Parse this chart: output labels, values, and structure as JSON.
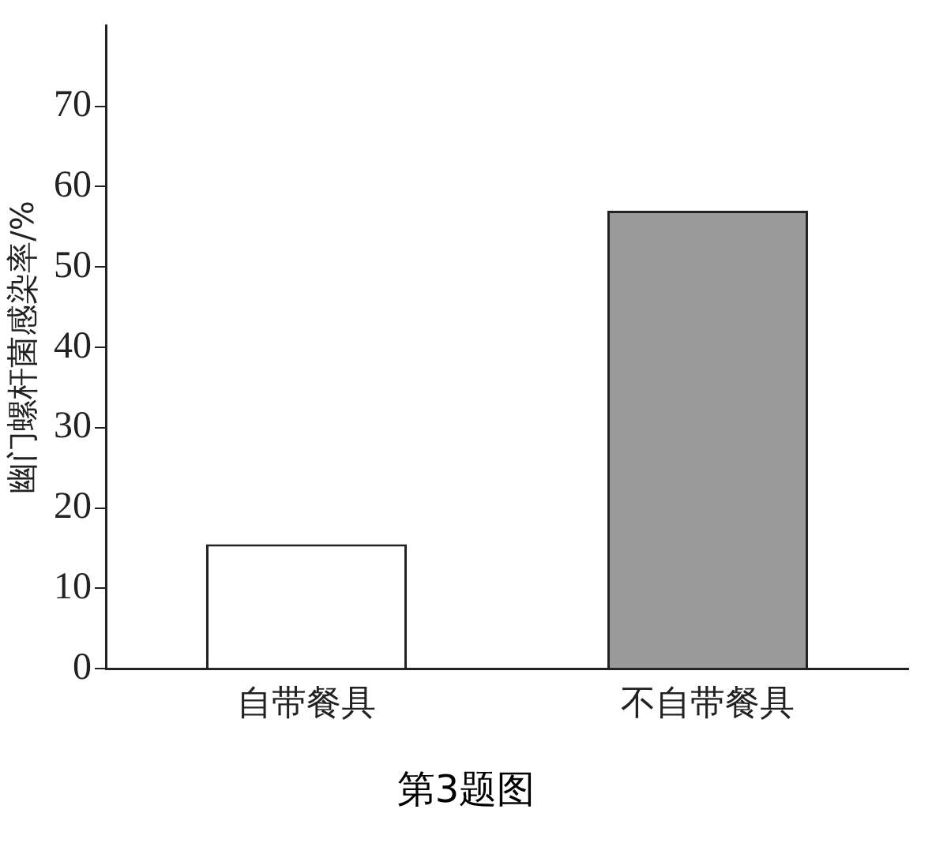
{
  "chart_data": {
    "type": "bar",
    "ylabel": "幽门螺杆菌感染率/%",
    "categories": [
      "自带餐具",
      "不自带餐具"
    ],
    "values": [
      15.5,
      57
    ],
    "colors": [
      "#ffffff",
      "#9a9a9a"
    ],
    "ylim": [
      0,
      80
    ],
    "yticks": [
      0,
      10,
      20,
      30,
      40,
      50,
      60,
      70
    ],
    "grid": false,
    "legend": false,
    "annotations": [
      "第3题图"
    ]
  }
}
